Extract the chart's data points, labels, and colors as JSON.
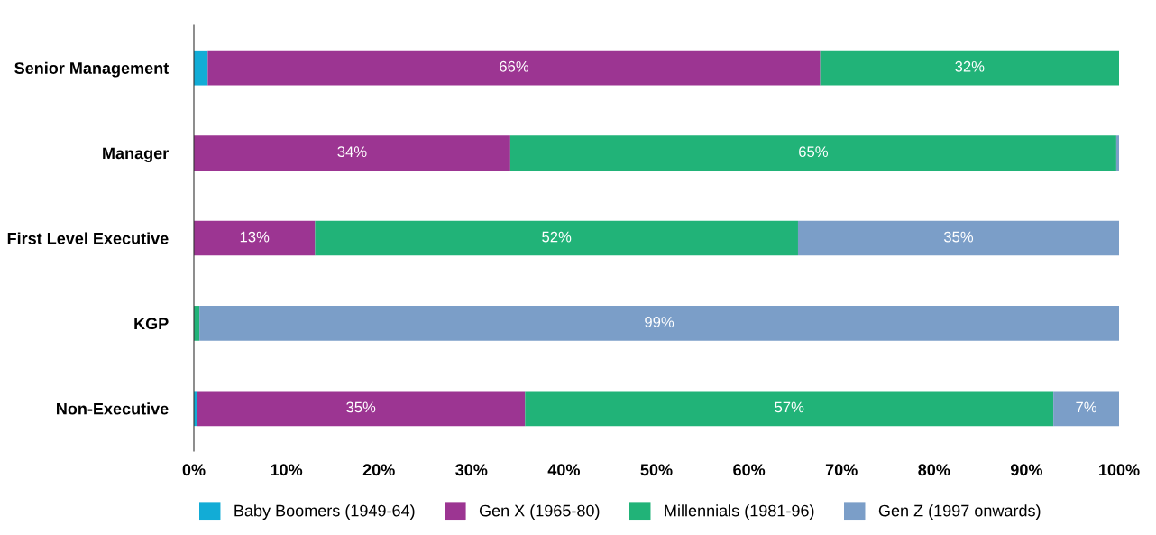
{
  "chart_data": {
    "type": "bar",
    "orientation": "horizontal",
    "stacked": true,
    "categories": [
      "Senior Management",
      "Manager",
      "First Level Executive",
      "KGP",
      "Non-Executive"
    ],
    "series": [
      {
        "name": "Baby Boomers (1949-64)",
        "color": "#12acd6",
        "values": [
          1.5,
          0,
          0,
          0,
          0.3
        ],
        "value_labels": [
          null,
          null,
          null,
          null,
          null
        ]
      },
      {
        "name": "Gen X (1965-80)",
        "color": "#9c3592",
        "values": [
          66.2,
          34.2,
          13.1,
          0,
          35.5
        ],
        "value_labels": [
          "66%",
          "34%",
          "13%",
          null,
          "35%"
        ]
      },
      {
        "name": "Millennials (1981-96)",
        "color": "#21b378",
        "values": [
          32.3,
          65.5,
          52.2,
          0.6,
          57.1
        ],
        "value_labels": [
          "32%",
          "65%",
          "52%",
          null,
          "57%"
        ]
      },
      {
        "name": "Gen Z (1997 onwards)",
        "color": "#7b9ec8",
        "values": [
          0,
          0.3,
          34.7,
          99.4,
          7.1
        ],
        "value_labels": [
          null,
          null,
          "35%",
          "99%",
          "7%"
        ]
      }
    ],
    "xlim": [
      0,
      100
    ],
    "xticks": [
      {
        "value": 0,
        "label": "0%"
      },
      {
        "value": 10,
        "label": "10%"
      },
      {
        "value": 20,
        "label": "20%"
      },
      {
        "value": 30,
        "label": "30%"
      },
      {
        "value": 40,
        "label": "40%"
      },
      {
        "value": 50,
        "label": "50%"
      },
      {
        "value": 60,
        "label": "60%"
      },
      {
        "value": 70,
        "label": "70%"
      },
      {
        "value": 80,
        "label": "80%"
      },
      {
        "value": 90,
        "label": "90%"
      },
      {
        "value": 100,
        "label": "100%"
      }
    ],
    "grid": false,
    "legend": "bottom"
  }
}
